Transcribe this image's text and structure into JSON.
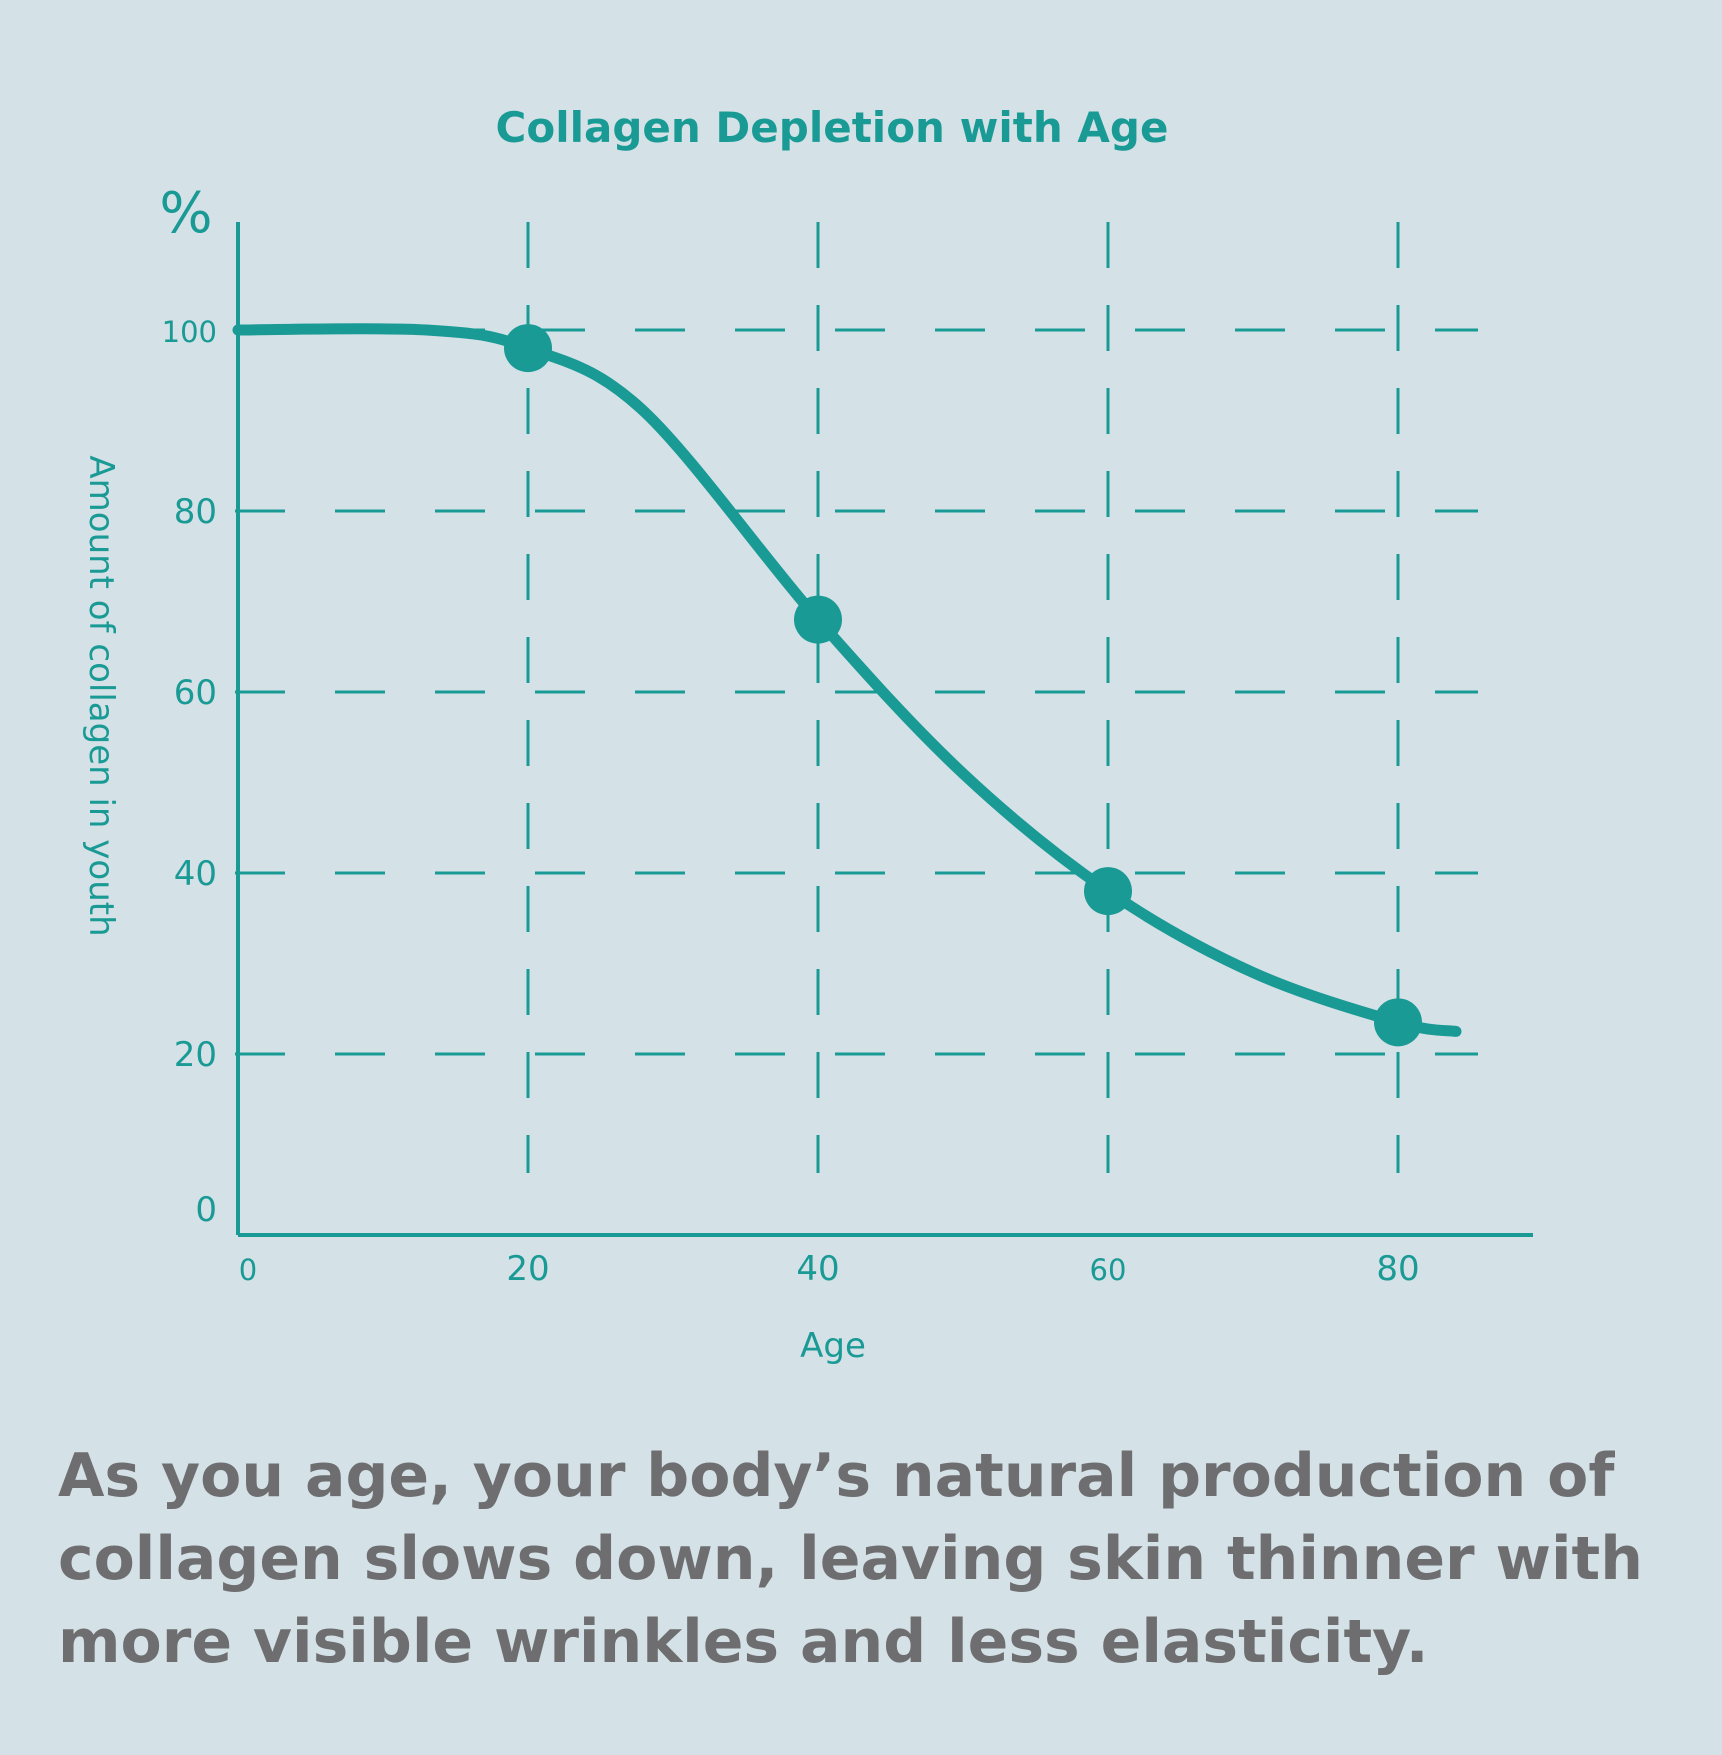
{
  "colors": {
    "background": "#d4e1e7",
    "accent": "#1a9a95",
    "caption_text": "#6e6e70"
  },
  "chart_data": {
    "type": "line",
    "title": "Collagen Depletion with Age",
    "unit_label": "%",
    "xlabel": "Age",
    "ylabel": "Amount of collagen in youth",
    "xlim": [
      0,
      90
    ],
    "ylim": [
      0,
      110
    ],
    "x_ticks": [
      "0",
      "20",
      "40",
      "60",
      "80"
    ],
    "y_ticks": [
      "0",
      "20",
      "40",
      "60",
      "80",
      "100"
    ],
    "grid": true,
    "series": [
      {
        "x": [
          0,
          13,
          20,
          28,
          40,
          50,
          60,
          70,
          80,
          84
        ],
        "y": [
          100,
          100,
          98,
          91,
          68,
          51,
          38,
          29,
          23.5,
          22.5
        ],
        "markers": [
          {
            "x": 20,
            "y": 98
          },
          {
            "x": 40,
            "y": 68
          },
          {
            "x": 60,
            "y": 38
          },
          {
            "x": 80,
            "y": 23.5
          }
        ]
      }
    ]
  },
  "caption": {
    "line1": "As you age, your body’s natural production of",
    "line2": "collagen slows down, leaving skin thinner with",
    "line3": "more visible wrinkles and less elasticity."
  }
}
